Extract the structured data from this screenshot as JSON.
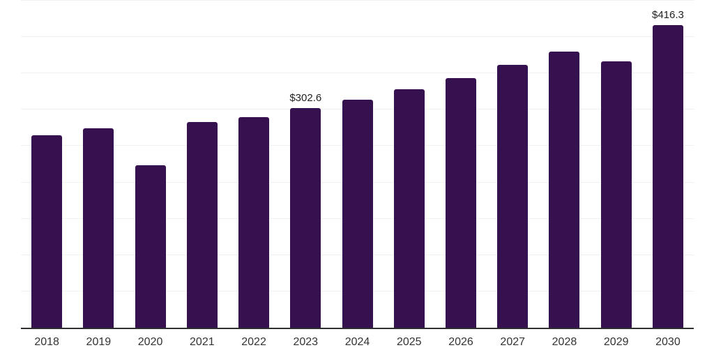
{
  "chart_data": {
    "type": "bar",
    "title": "",
    "xlabel": "",
    "ylabel": "",
    "categories": [
      "2018",
      "2019",
      "2020",
      "2021",
      "2022",
      "2023",
      "2024",
      "2025",
      "2026",
      "2027",
      "2028",
      "2029",
      "2030"
    ],
    "values": [
      265,
      274,
      224,
      283,
      290,
      302.6,
      314,
      328,
      344,
      362,
      380,
      367,
      416.3
    ],
    "data_labels": [
      null,
      null,
      null,
      null,
      null,
      "$302.6",
      null,
      null,
      null,
      null,
      null,
      null,
      "$416.3"
    ],
    "ylim": [
      0,
      450
    ],
    "gridlines": {
      "visible": true,
      "step": 50,
      "values": [
        50,
        100,
        150,
        200,
        250,
        300,
        350,
        400,
        450
      ]
    },
    "y_axis_tick_labels_visible": false,
    "legend_position": "none"
  },
  "colors": {
    "bar": "#361150",
    "gridline": "#f1f1f1",
    "axis": "#2f2f2f",
    "data_label_text": "#1f1f1f",
    "tick_text": "#333333",
    "background": "#ffffff"
  }
}
